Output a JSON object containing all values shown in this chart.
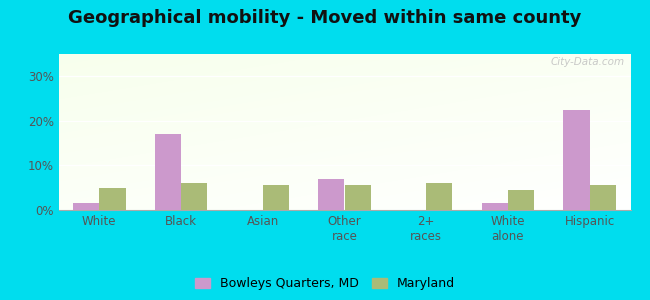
{
  "title": "Geographical mobility - Moved within same county",
  "categories": [
    "White",
    "Black",
    "Asian",
    "Other\nrace",
    "2+\nraces",
    "White\nalone",
    "Hispanic"
  ],
  "bowleys_values": [
    1.5,
    17.0,
    0.0,
    7.0,
    0.0,
    1.5,
    22.5
  ],
  "maryland_values": [
    5.0,
    6.0,
    5.5,
    5.5,
    6.0,
    4.5,
    5.5
  ],
  "bowleys_color": "#cc99cc",
  "maryland_color": "#aabb77",
  "outer_bg": "#00ddee",
  "bar_width": 0.32,
  "ylim": [
    0,
    35
  ],
  "yticks": [
    0,
    10,
    20,
    30
  ],
  "ytick_labels": [
    "0%",
    "10%",
    "20%",
    "30%"
  ],
  "legend_label1": "Bowleys Quarters, MD",
  "legend_label2": "Maryland",
  "title_fontsize": 13,
  "tick_fontsize": 8.5,
  "legend_fontsize": 9,
  "watermark": "City-Data.com"
}
